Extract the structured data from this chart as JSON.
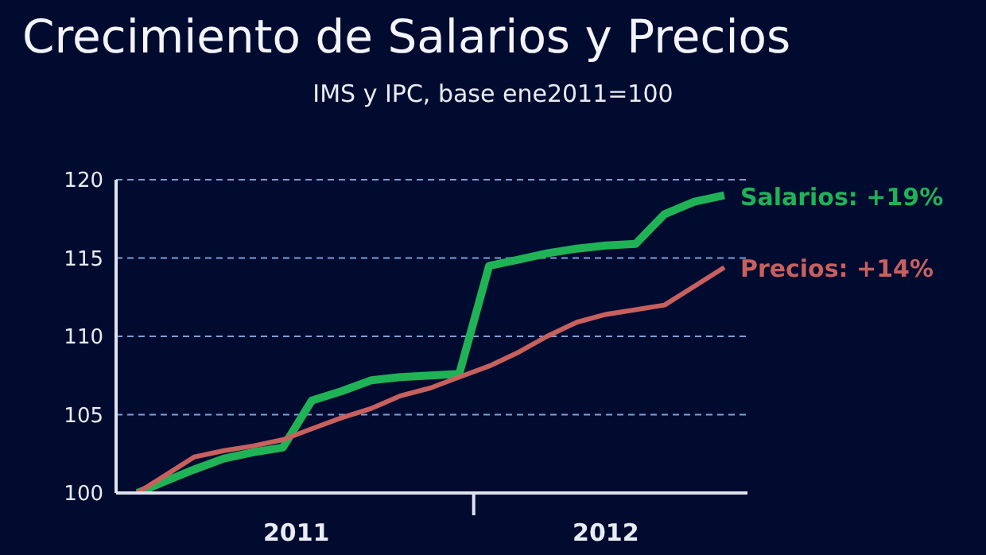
{
  "chart_data": {
    "type": "line",
    "title": "Crecimiento de Salarios y Precios",
    "subtitle": "IMS y IPC, base ene2011=100",
    "x": [
      "2011-01",
      "2011-02",
      "2011-03",
      "2011-04",
      "2011-05",
      "2011-06",
      "2011-07",
      "2011-08",
      "2011-09",
      "2011-10",
      "2011-11",
      "2011-12",
      "2012-01",
      "2012-02",
      "2012-03",
      "2012-04",
      "2012-05",
      "2012-06",
      "2012-07",
      "2012-08",
      "2012-09"
    ],
    "series": [
      {
        "name": "Salarios: +19%",
        "color": "#1fb356",
        "values": [
          100,
          100.8,
          101.5,
          102.2,
          102.6,
          102.9,
          105.9,
          106.5,
          107.2,
          107.4,
          107.5,
          107.6,
          114.5,
          114.9,
          115.3,
          115.6,
          115.8,
          115.9,
          117.8,
          118.6,
          119.0
        ]
      },
      {
        "name": "Precios: +14%",
        "color": "#c8605e",
        "values": [
          100,
          101.2,
          102.3,
          102.7,
          103.0,
          103.4,
          104.1,
          104.8,
          105.4,
          106.2,
          106.7,
          107.4,
          108.1,
          109.0,
          110.0,
          110.9,
          111.4,
          111.7,
          112.0,
          113.2,
          114.4
        ]
      }
    ],
    "xlim": [
      "2010-12-10",
      "2012-09-25"
    ],
    "xticks": [
      {
        "value": "2011-06-15",
        "label": "2011"
      },
      {
        "value": "2011-12-16",
        "label": null
      },
      {
        "value": "2012-05-01",
        "label": "2012"
      }
    ],
    "ylim": [
      100,
      120
    ],
    "yticks": [
      100,
      105,
      110,
      115,
      120
    ],
    "grid": "y",
    "legend": false,
    "marker": "none",
    "line_style": "solid"
  }
}
